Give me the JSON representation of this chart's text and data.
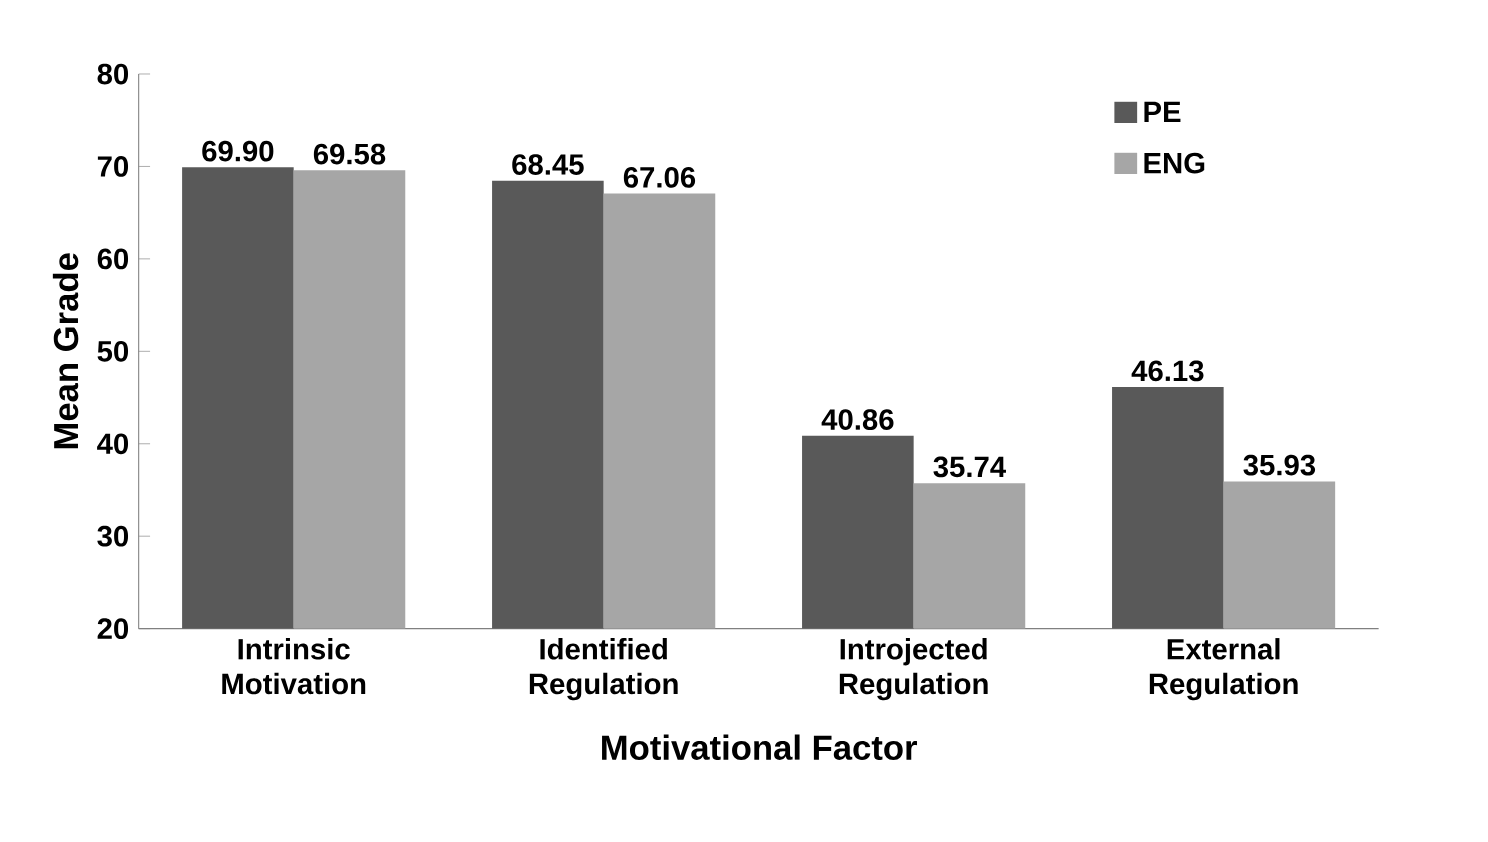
{
  "chart_data": {
    "type": "bar",
    "xlabel": "Motivational Factor",
    "ylabel": "Mean Grade",
    "categories": [
      "Intrinsic Motivation",
      "Identified Regulation",
      "Introjected Regulation",
      "External Regulation"
    ],
    "series": [
      {
        "name": "PE",
        "color": "#595959",
        "values": [
          69.9,
          68.45,
          40.86,
          46.13
        ],
        "value_labels": [
          "69.90",
          "68.45",
          "40.86",
          "46.13"
        ]
      },
      {
        "name": "ENG",
        "color": "#a6a6a6",
        "values": [
          69.58,
          67.06,
          35.74,
          35.93
        ],
        "value_labels": [
          "69.58",
          "67.06",
          "35.74",
          "35.93"
        ]
      }
    ],
    "ylim": [
      20,
      80
    ],
    "yticks": [
      20,
      30,
      40,
      50,
      60,
      70,
      80
    ],
    "legend": "top right"
  }
}
